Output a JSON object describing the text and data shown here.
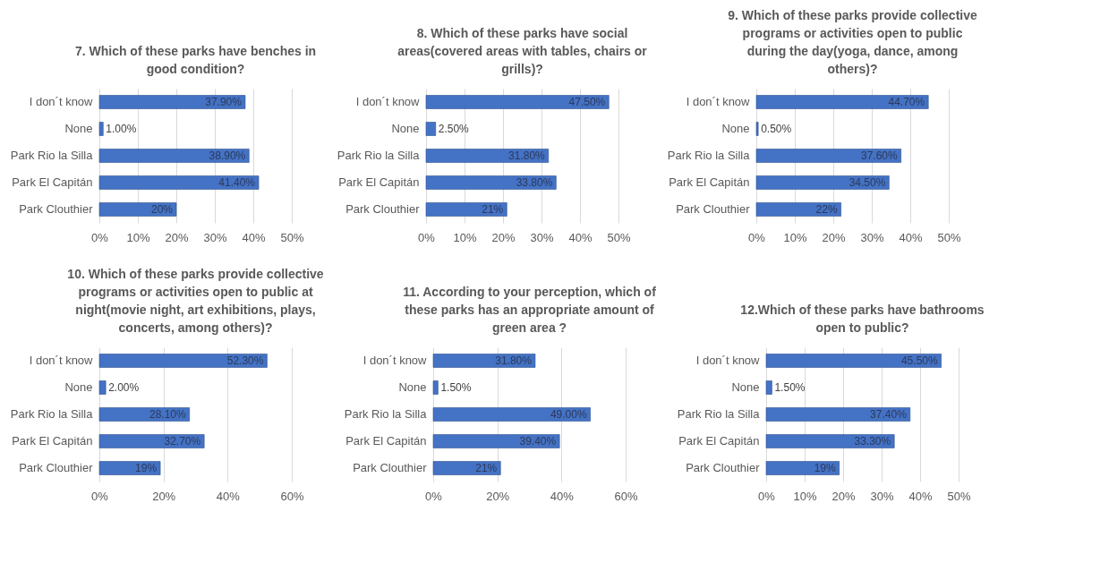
{
  "chart_data": [
    {
      "type": "bar",
      "orientation": "horizontal",
      "title": "7. Which of these parks have benches in good condition?",
      "categories": [
        "I don´t know",
        "None",
        "Park Rio la Silla",
        "Park El Capitán",
        "Park Clouthier"
      ],
      "values": [
        37.9,
        1.0,
        38.9,
        41.4,
        20
      ],
      "value_labels": [
        "37.90%",
        "1.00%",
        "38.90%",
        "41.40%",
        "20%"
      ],
      "color": "#4472c4",
      "xlim": [
        0,
        50
      ],
      "xticks": [
        {
          "value": 0,
          "label": "0%"
        },
        {
          "value": 10,
          "label": "10%"
        },
        {
          "value": 20,
          "label": "20%"
        },
        {
          "value": 30,
          "label": "30%"
        },
        {
          "value": 40,
          "label": "40%"
        },
        {
          "value": 50,
          "label": "50%"
        }
      ],
      "grid": "x"
    },
    {
      "type": "bar",
      "orientation": "horizontal",
      "title": "8. Which of these parks have social areas(covered areas with tables, chairs or grills)?",
      "categories": [
        "I don´t know",
        "None",
        "Park Rio la Silla",
        "Park El Capitán",
        "Park Clouthier"
      ],
      "values": [
        47.5,
        2.5,
        31.8,
        33.8,
        21
      ],
      "value_labels": [
        "47.50%",
        "2.50%",
        "31.80%",
        "33.80%",
        "21%"
      ],
      "color": "#4472c4",
      "xlim": [
        0,
        50
      ],
      "xticks": [
        {
          "value": 0,
          "label": "0%"
        },
        {
          "value": 10,
          "label": "10%"
        },
        {
          "value": 20,
          "label": "20%"
        },
        {
          "value": 30,
          "label": "30%"
        },
        {
          "value": 40,
          "label": "40%"
        },
        {
          "value": 50,
          "label": "50%"
        }
      ],
      "grid": "x"
    },
    {
      "type": "bar",
      "orientation": "horizontal",
      "title": "9. Which of these parks provide collective programs or activities open to public during the day(yoga, dance, among others)?",
      "categories": [
        "I don´t know",
        "None",
        "Park Rio la Silla",
        "Park El Capitán",
        "Park Clouthier"
      ],
      "values": [
        44.7,
        0.5,
        37.6,
        34.5,
        22
      ],
      "value_labels": [
        "44.70%",
        "0.50%",
        "37.60%",
        "34.50%",
        "22%"
      ],
      "color": "#4472c4",
      "xlim": [
        0,
        50
      ],
      "xticks": [
        {
          "value": 0,
          "label": "0%"
        },
        {
          "value": 10,
          "label": "10%"
        },
        {
          "value": 20,
          "label": "20%"
        },
        {
          "value": 30,
          "label": "30%"
        },
        {
          "value": 40,
          "label": "40%"
        },
        {
          "value": 50,
          "label": "50%"
        }
      ],
      "grid": "x"
    },
    {
      "type": "bar",
      "orientation": "horizontal",
      "title": "10. Which of these parks provide collective programs or activities open to public at night(movie night, art exhibitions, plays, concerts, among others)?",
      "categories": [
        "I don´t know",
        "None",
        "Park Rio la Silla",
        "Park El Capitán",
        "Park Clouthier"
      ],
      "values": [
        52.3,
        2.0,
        28.1,
        32.7,
        19
      ],
      "value_labels": [
        "52.30%",
        "2.00%",
        "28.10%",
        "32.70%",
        "19%"
      ],
      "color": "#4472c4",
      "xlim": [
        0,
        60
      ],
      "xticks": [
        {
          "value": 0,
          "label": "0%"
        },
        {
          "value": 20,
          "label": "20%"
        },
        {
          "value": 40,
          "label": "40%"
        },
        {
          "value": 60,
          "label": "60%"
        }
      ],
      "grid": "x"
    },
    {
      "type": "bar",
      "orientation": "horizontal",
      "title": "11. According to your perception, which of these parks has an appropriate amount of green area ?",
      "categories": [
        "I don´t know",
        "None",
        "Park Rio la Silla",
        "Park El Capitán",
        "Park Clouthier"
      ],
      "values": [
        31.8,
        1.5,
        49.0,
        39.4,
        21
      ],
      "value_labels": [
        "31.80%",
        "1.50%",
        "49.00%",
        "39.40%",
        "21%"
      ],
      "color": "#4472c4",
      "xlim": [
        0,
        60
      ],
      "xticks": [
        {
          "value": 0,
          "label": "0%"
        },
        {
          "value": 20,
          "label": "20%"
        },
        {
          "value": 40,
          "label": "40%"
        },
        {
          "value": 60,
          "label": "60%"
        }
      ],
      "grid": "x"
    },
    {
      "type": "bar",
      "orientation": "horizontal",
      "title": "12.Which of these parks have bathrooms open to public?",
      "categories": [
        "I don´t know",
        "None",
        "Park Rio la Silla",
        "Park El Capitán",
        "Park Clouthier"
      ],
      "values": [
        45.5,
        1.5,
        37.4,
        33.3,
        19
      ],
      "value_labels": [
        "45.50%",
        "1.50%",
        "37.40%",
        "33.30%",
        "19%"
      ],
      "color": "#4472c4",
      "xlim": [
        0,
        50
      ],
      "xticks": [
        {
          "value": 0,
          "label": "0%"
        },
        {
          "value": 10,
          "label": "10%"
        },
        {
          "value": 20,
          "label": "20%"
        },
        {
          "value": 30,
          "label": "30%"
        },
        {
          "value": 40,
          "label": "40%"
        },
        {
          "value": 50,
          "label": "50%"
        }
      ],
      "grid": "x"
    }
  ]
}
